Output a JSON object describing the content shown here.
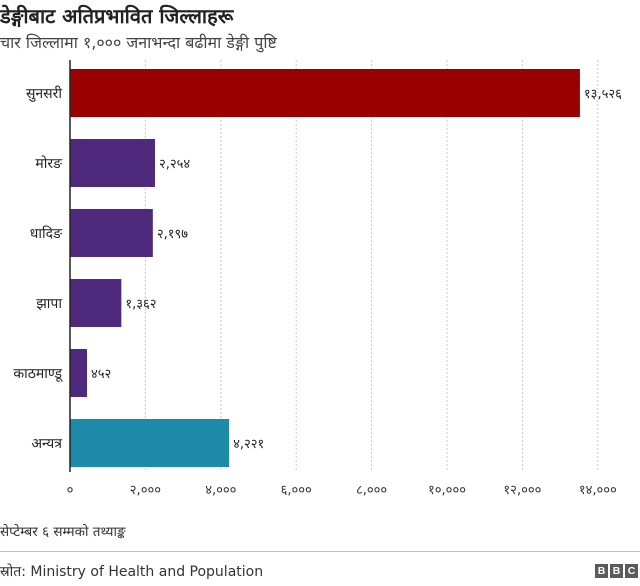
{
  "header": {
    "title": "डेङ्गीबाट अतिप्रभावित जिल्लाहरू",
    "subtitle": "चार जिल्लामा १,००० जनाभन्दा बढीमा डेङ्गी पुष्टि"
  },
  "footer": {
    "note": "सेप्टेम्बर ६ सम्मको तथ्याङ्क",
    "source": "स्रोत: Ministry of Health and Population",
    "logo_letters": [
      "B",
      "B",
      "C"
    ]
  },
  "chart_data": {
    "type": "bar",
    "orientation": "horizontal",
    "categories": [
      "सुनसरी",
      "मोरङ",
      "धादिङ",
      "झापा",
      "काठमाण्डू",
      "अन्यत्र"
    ],
    "values": [
      13526,
      2254,
      2197,
      1362,
      452,
      4221
    ],
    "value_labels": [
      "१३,५२६",
      "२,२५४",
      "२,१९७",
      "१,३६२",
      "४५२",
      "४,२२१"
    ],
    "bar_colors": [
      "#990000",
      "#4f2a7c",
      "#4f2a7c",
      "#4f2a7c",
      "#4f2a7c",
      "#1d8aa8"
    ],
    "x_ticks": [
      0,
      2000,
      4000,
      6000,
      8000,
      10000,
      12000,
      14000
    ],
    "x_tick_labels": [
      "०",
      "२,०००",
      "४,०००",
      "६,०००",
      "८,०००",
      "१०,०००",
      "१२,०००",
      "१४,०००"
    ],
    "xlim": [
      0,
      15000
    ],
    "grid": "vertical-dotted",
    "legend": "none",
    "title": "डेङ्गीबाट अतिप्रभावित जिल्लाहरू",
    "subtitle": "चार जिल्लामा १,००० जनाभन्दा बढीमा डेङ्गी पुष्टि",
    "xlabel": "",
    "ylabel": ""
  }
}
